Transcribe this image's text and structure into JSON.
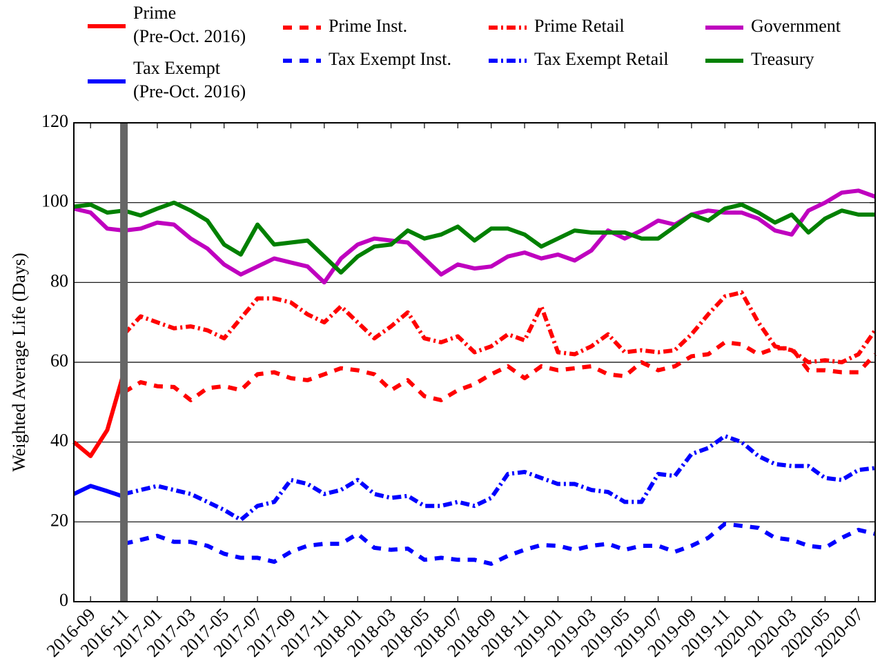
{
  "chart_data": {
    "type": "line",
    "y_label": "Weighted Average Life (Days)",
    "categories": [
      null,
      "2016-09",
      null,
      "2016-11",
      null,
      "2017-01",
      null,
      "2017-03",
      null,
      "2017-05",
      null,
      "2017-07",
      null,
      "2017-09",
      null,
      "2017-11",
      null,
      "2018-01",
      null,
      "2018-03",
      null,
      "2018-05",
      null,
      "2018-07",
      null,
      "2018-09",
      null,
      "2018-11",
      null,
      "2019-01",
      null,
      "2019-03",
      null,
      "2019-05",
      null,
      "2019-07",
      null,
      "2019-09",
      null,
      "2019-11",
      null,
      "2020-01",
      null,
      "2020-03",
      null,
      "2020-05",
      null,
      "2020-07",
      null
    ],
    "vline_at": "2016-11",
    "vline_color": "#666666",
    "ylim": [
      0,
      120
    ],
    "yticks": [
      0,
      20,
      40,
      60,
      80,
      100,
      120
    ],
    "grid": true,
    "series": [
      {
        "name": "Prime\n(Pre-Oct. 2016)",
        "color": "#ff0000",
        "style": "solid",
        "values": [
          40,
          36.5,
          43,
          57.5,
          null,
          null,
          null,
          null,
          null,
          null,
          null,
          null,
          null,
          null,
          null,
          null,
          null,
          null,
          null,
          null,
          null,
          null,
          null,
          null,
          null,
          null,
          null,
          null,
          null,
          null,
          null,
          null,
          null,
          null,
          null,
          null,
          null,
          null,
          null,
          null,
          null,
          null,
          null,
          null,
          null,
          null,
          null,
          null,
          null
        ]
      },
      {
        "name": "Tax Exempt\n(Pre-Oct. 2016)",
        "color": "#0000ff",
        "style": "solid",
        "values": [
          27,
          29,
          27.7,
          26.3,
          null,
          null,
          null,
          null,
          null,
          null,
          null,
          null,
          null,
          null,
          null,
          null,
          null,
          null,
          null,
          null,
          null,
          null,
          null,
          null,
          null,
          null,
          null,
          null,
          null,
          null,
          null,
          null,
          null,
          null,
          null,
          null,
          null,
          null,
          null,
          null,
          null,
          null,
          null,
          null,
          null,
          null,
          null,
          null,
          null
        ]
      },
      {
        "name": "Prime Inst.",
        "color": "#ff0000",
        "style": "dashed",
        "values": [
          null,
          null,
          null,
          52.5,
          55,
          54,
          53.8,
          50.5,
          53.5,
          54,
          53,
          57,
          57.5,
          56,
          55.5,
          57,
          58.5,
          58,
          57,
          53,
          55.5,
          51.5,
          50.5,
          53,
          54.5,
          57,
          59,
          56,
          59,
          58,
          58.5,
          59,
          57,
          56.5,
          60,
          58,
          59,
          61.5,
          62,
          65,
          64.5,
          62,
          63.5,
          63.5,
          58,
          58,
          57.5,
          57.5,
          62
        ]
      },
      {
        "name": "Tax Exempt Inst.",
        "color": "#0000ff",
        "style": "dashed",
        "values": [
          null,
          null,
          null,
          14.5,
          15.5,
          16.5,
          15,
          15,
          14,
          12,
          11,
          11,
          10,
          12.5,
          14,
          14.5,
          14.5,
          17,
          13.5,
          13,
          13.3,
          10.5,
          11,
          10.5,
          10.5,
          9.5,
          11.5,
          13,
          14.2,
          14,
          13,
          14,
          14.5,
          13,
          14,
          14,
          12.5,
          14,
          16,
          19.5,
          19,
          18.5,
          16,
          15.5,
          14,
          13.5,
          16,
          18,
          17
        ]
      },
      {
        "name": "Prime Retail",
        "color": "#ff0000",
        "style": "dashdot",
        "values": [
          null,
          null,
          null,
          67,
          71.5,
          70,
          68.5,
          69,
          68,
          66,
          71,
          76,
          76,
          75,
          72,
          70,
          74,
          70,
          66,
          69,
          72.5,
          66,
          65,
          66.5,
          62.5,
          64,
          67,
          65.5,
          74,
          62.5,
          62,
          64,
          67,
          62.5,
          63,
          62.5,
          63,
          67,
          72,
          76.5,
          77.5,
          70,
          64,
          63,
          60,
          60.5,
          60,
          62,
          68
        ]
      },
      {
        "name": "Tax Exempt Retail",
        "color": "#0000ff",
        "style": "dashdot",
        "values": [
          null,
          null,
          null,
          27,
          28,
          29,
          28,
          27,
          25,
          23,
          20.5,
          24,
          25,
          30.5,
          29.5,
          27,
          28,
          30.5,
          27,
          26,
          26.5,
          24,
          24,
          25,
          24,
          26,
          32,
          32.5,
          31,
          29.5,
          29.5,
          28,
          27.5,
          25,
          25,
          32,
          31.5,
          37,
          38.5,
          41.5,
          40,
          36.5,
          34.5,
          34,
          34,
          31,
          30.5,
          33,
          33.5
        ]
      },
      {
        "name": "Government",
        "color": "#bf00bf",
        "style": "solid",
        "values": [
          98.5,
          97.5,
          93.5,
          93,
          93.5,
          95,
          94.5,
          91,
          88.5,
          84.5,
          82,
          84,
          86,
          85,
          84,
          80,
          86,
          89.5,
          91,
          90.5,
          90,
          86,
          82,
          84.5,
          83.5,
          84,
          86.5,
          87.5,
          86,
          87,
          85.5,
          88,
          93,
          91,
          93,
          95.5,
          94.5,
          97,
          98,
          97.5,
          97.5,
          96,
          93,
          92,
          98,
          100,
          102.5,
          103,
          101.5
        ]
      },
      {
        "name": "Treasury",
        "color": "#008000",
        "style": "solid",
        "values": [
          99,
          99.5,
          97.5,
          98,
          96.8,
          98.5,
          100,
          98,
          95.5,
          89.5,
          87,
          94.5,
          89.5,
          90,
          90.5,
          86.5,
          82.5,
          86.5,
          89,
          89.5,
          93,
          91,
          92,
          94,
          90.5,
          93.5,
          93.5,
          92,
          89,
          91,
          93,
          92.5,
          92.5,
          92.5,
          91,
          91,
          94,
          97,
          95.5,
          98.5,
          99.5,
          97.5,
          95,
          97,
          92.5,
          96,
          98,
          97,
          97
        ]
      }
    ]
  }
}
